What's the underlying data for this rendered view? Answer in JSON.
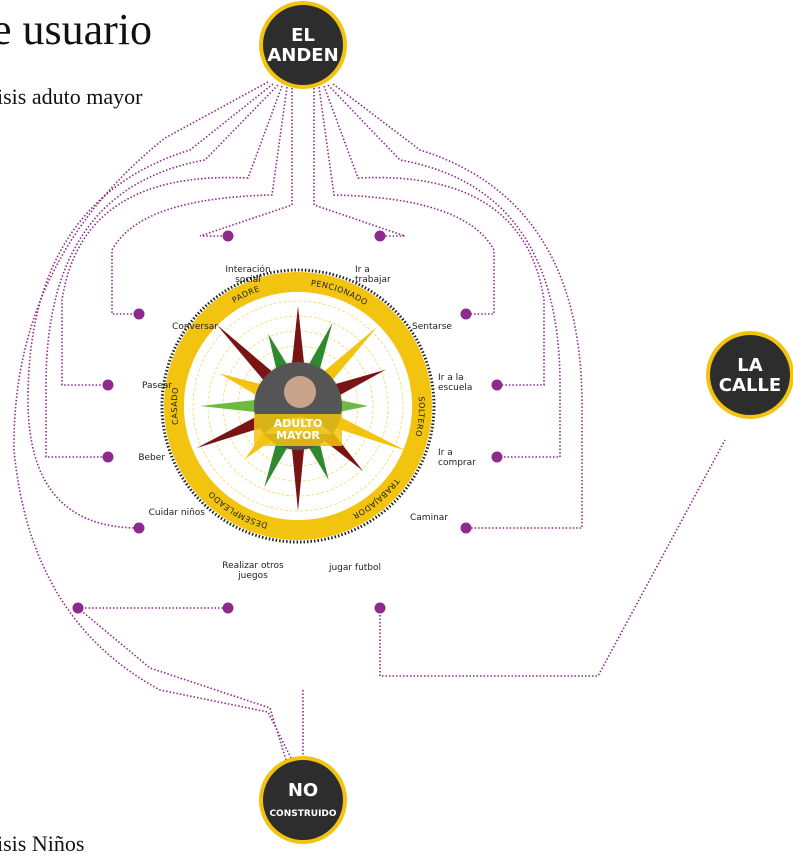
{
  "header": {
    "title": "e usuario",
    "subtitle": "isis aduto mayor",
    "footer": "isis Niños"
  },
  "nodes": [
    {
      "label": [
        "EL",
        "ANDEN"
      ]
    },
    {
      "label": [
        "LA",
        "CALLE"
      ]
    },
    {
      "label": [
        "NO",
        "CONSTRUIDO"
      ]
    }
  ],
  "center": {
    "label": [
      "ADULTO",
      "MAYOR"
    ]
  },
  "roles": [
    "PADRE",
    "PENCIONADO",
    "SOLTERO",
    "TRABAJADOR",
    "DESEMPLEADO",
    "CASADO"
  ],
  "activities": [
    {
      "label": [
        "Interación",
        "social"
      ]
    },
    {
      "label": [
        "Ir a",
        "trabajar"
      ]
    },
    {
      "label": [
        "Conversar"
      ]
    },
    {
      "label": [
        "Sentarse"
      ]
    },
    {
      "label": [
        "Pasear"
      ]
    },
    {
      "label": [
        "Ir a la",
        "escuela"
      ]
    },
    {
      "label": [
        "Beber"
      ]
    },
    {
      "label": [
        "Ir a",
        "comprar"
      ]
    },
    {
      "label": [
        "Cuidar niños"
      ]
    },
    {
      "label": [
        "Caminar"
      ]
    },
    {
      "label": [
        "Realizar otros",
        "juegos"
      ]
    },
    {
      "label": [
        "jugar futbol"
      ]
    }
  ]
}
